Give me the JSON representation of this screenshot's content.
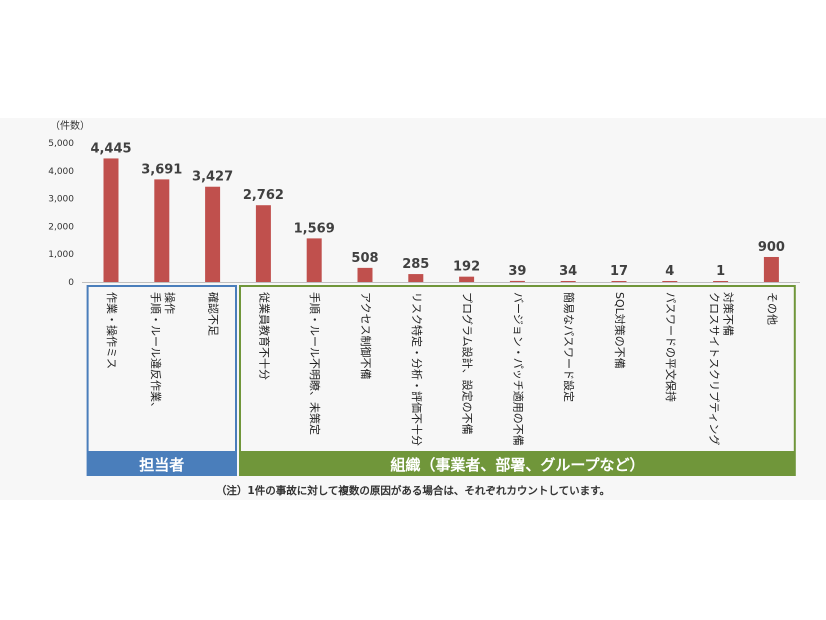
{
  "chart_data": {
    "type": "bar",
    "unit_label": "（件数）",
    "ylim": [
      0,
      5000
    ],
    "yticks": [
      "0",
      "1,000",
      "2,000",
      "3,000",
      "4,000",
      "5,000"
    ],
    "ytick_values": [
      0,
      1000,
      2000,
      3000,
      4000,
      5000
    ],
    "categories": [
      "作業・操作ミス",
      "手順・ルール違反作業、操作",
      "確認不足",
      "従業員教育不十分",
      "手順・ルール不明瞭、未策定",
      "アクセス制御不備",
      "リスク特定・分析・評価不十分",
      "プログラム設計、設定の不備",
      "バージョン・パッチ適用の不備",
      "簡易なパスワード設定",
      "SQL対策の不備",
      "パスワードの平文保持",
      "クロスサイトスクリプティング対策不備",
      "その他"
    ],
    "category_lines": [
      [
        "作業・操作ミス"
      ],
      [
        "手順・ルール違反作業、",
        "操作"
      ],
      [
        "確認不足"
      ],
      [
        "従業員教育不十分"
      ],
      [
        "手順・ルール不明瞭、未策定"
      ],
      [
        "アクセス制御不備"
      ],
      [
        "リスク特定・分析・評価不十分"
      ],
      [
        "プログラム設計、設定の不備"
      ],
      [
        "バージョン・パッチ適用の不備"
      ],
      [
        "簡易なパスワード設定"
      ],
      [
        "SQL対策の不備"
      ],
      [
        "パスワードの平文保持"
      ],
      [
        "クロスサイトスクリプティング",
        "対策不備"
      ],
      [
        "その他"
      ]
    ],
    "values": [
      4445,
      3691,
      3427,
      2762,
      1569,
      508,
      285,
      192,
      39,
      34,
      17,
      4,
      1,
      900
    ],
    "value_labels": [
      "4,445",
      "3,691",
      "3,427",
      "2,762",
      "1,569",
      "508",
      "285",
      "192",
      "39",
      "34",
      "17",
      "4",
      "1",
      "900"
    ],
    "bar_color": "#c0504d",
    "groups": [
      {
        "label": "担当者",
        "start": 0,
        "end": 2,
        "color": "#4a7ebb"
      },
      {
        "label": "組織（事業者、部署、グループなど）",
        "start": 3,
        "end": 13,
        "color": "#70963a"
      }
    ],
    "grid": false,
    "legend": "none"
  },
  "note": "（注）1件の事故に対して複数の原因がある場合は、それぞれカウントしています。"
}
